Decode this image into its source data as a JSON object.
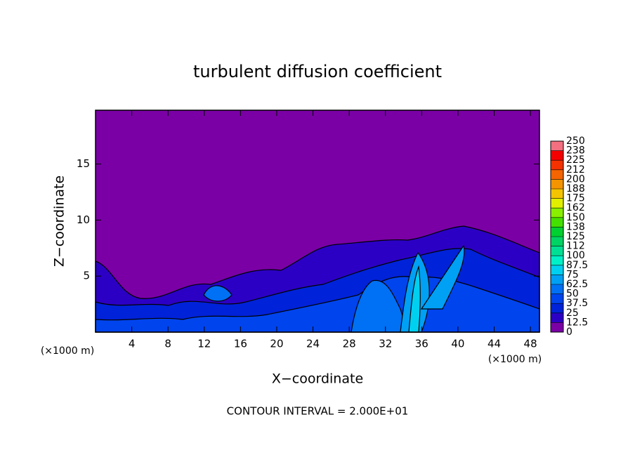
{
  "chart_data": {
    "type": "contour",
    "title": "turbulent diffusion coefficient",
    "xlabel": "X−coordinate",
    "ylabel": "Z−coordinate",
    "x_unit": "(×1000 m)",
    "footer": "CONTOUR INTERVAL = 2.000E+01",
    "xlim": [
      0,
      49
    ],
    "xticks": [
      4,
      8,
      12,
      16,
      20,
      24,
      28,
      32,
      36,
      40,
      44,
      48
    ],
    "ylim": [
      0,
      19.8
    ],
    "yticks": [
      5,
      10,
      15
    ],
    "colorbar": {
      "ticks": [
        0,
        12.5,
        25,
        37.5,
        50,
        62.5,
        75,
        87.5,
        100,
        {
          "value": 112.5,
          "label": "112"
        },
        125,
        {
          "value": 137.5,
          "label": "138"
        },
        150,
        {
          "value": 162.5,
          "label": "162"
        },
        175,
        {
          "value": 187.5,
          "label": "188"
        },
        200,
        {
          "value": 212.5,
          "label": "212"
        },
        225,
        {
          "value": 237.5,
          "label": "238"
        },
        250
      ],
      "colors": [
        "#7a00a6",
        "#2c00c4",
        "#0022d8",
        "#0044ee",
        "#0070f4",
        "#00a0f4",
        "#00d0f0",
        "#00f0c8",
        "#00e094",
        "#00d464",
        "#00d030",
        "#44e000",
        "#88f000",
        "#e0f000",
        "#f4c400",
        "#f49400",
        "#f46400",
        "#f43200",
        "#f40000",
        "#f47080"
      ]
    }
  }
}
